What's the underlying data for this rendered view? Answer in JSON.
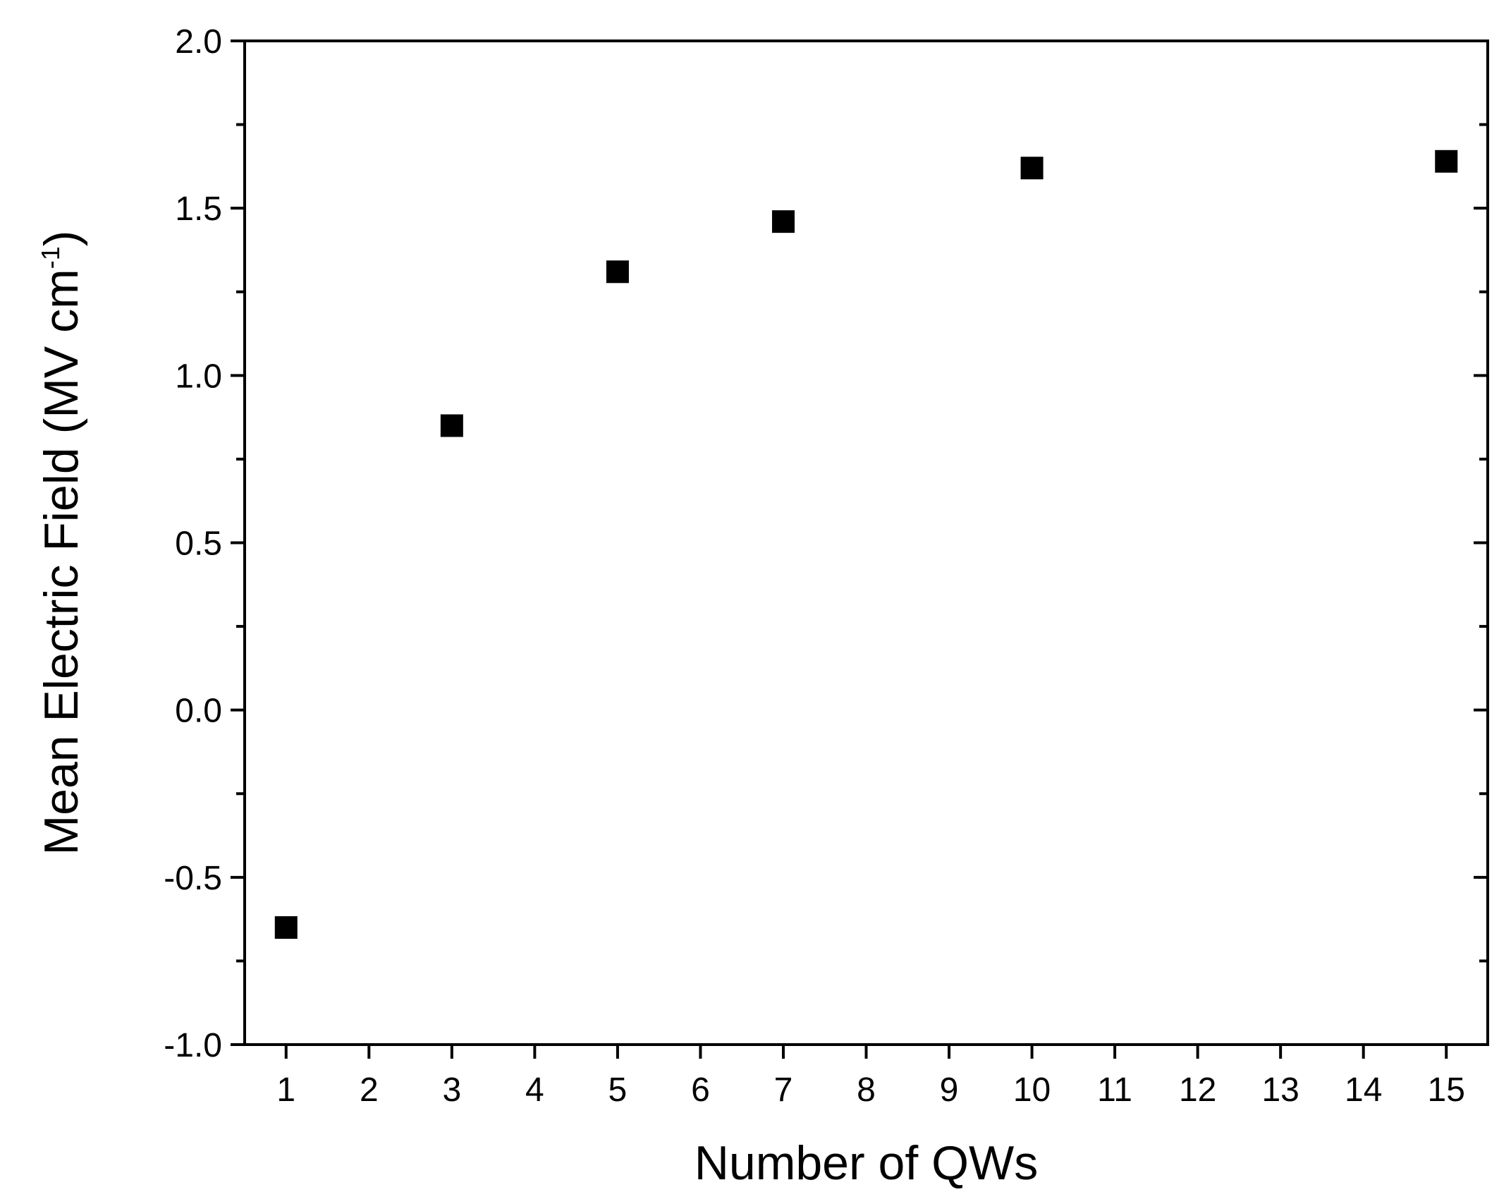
{
  "chart_data": {
    "type": "scatter",
    "title": "",
    "xlabel": "Number of QWs",
    "ylabel": {
      "main": "Mean Electric Field (MV cm",
      "superscript": "-1",
      "close": ")"
    },
    "xlim": [
      0.5,
      15.5
    ],
    "ylim": [
      -1.0,
      2.0
    ],
    "x_ticks": [
      "1",
      "2",
      "3",
      "4",
      "5",
      "6",
      "7",
      "8",
      "9",
      "10",
      "11",
      "12",
      "13",
      "14",
      "15"
    ],
    "y_ticks": [
      "-1.0",
      "-0.5",
      "0.0",
      "0.5",
      "1.0",
      "1.5",
      "2.0"
    ],
    "y_tick_values": [
      -1.0,
      -0.5,
      0.0,
      0.5,
      1.0,
      1.5,
      2.0
    ],
    "y_minor_step": 0.25,
    "grid": false,
    "marker": "filled-square",
    "marker_color": "#000000",
    "series": [
      {
        "x": [
          1,
          3,
          5,
          7,
          10,
          15
        ],
        "y": [
          -0.65,
          0.85,
          1.31,
          1.46,
          1.62,
          1.64
        ]
      }
    ]
  }
}
